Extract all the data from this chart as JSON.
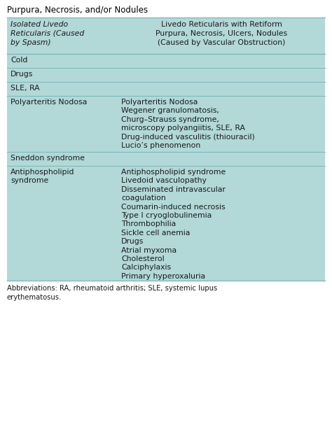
{
  "title_partial": "Purpura, Necrosis, and/or Nodules",
  "header_col1": "Isolated Livedo\nReticularis (Caused\nby Spasm)",
  "header_col2": "Livedo Reticularis with Retiform\nPurpura, Necrosis, Ulcers, Nodules\n(Caused by Vascular Obstruction)",
  "rows": [
    {
      "col1": "Cold",
      "col2": ""
    },
    {
      "col1": "Drugs",
      "col2": ""
    },
    {
      "col1": "SLE, RA",
      "col2": ""
    },
    {
      "col1": "Polyarteritis Nodosa",
      "col2": "Polyarteritis Nodosa\nWegener granulomatosis,\nChurg–Strauss syndrome,\nmicroscopy polyangiitis, SLE, RA\nDrug-induced vasculitis (thiouracil)\nLucio’s phenomenon"
    },
    {
      "col1": "Sneddon syndrome",
      "col2": ""
    },
    {
      "col1": "Antiphospholipid\nsyndrome",
      "col2": "Antiphospholipid syndrome\nLivedoid vasculopathy\nDisseminated intravascular\ncoagulation\nCoumarin-induced necrosis\nType I cryoglobulinemia\nThrombophilia\nSickle cell anemia\nDrugs\nAtrial myxoma\nCholesterol\nCalciphylaxis\nPrimary hyperoxaluria"
    }
  ],
  "footnote": "Abbreviations: RA, rheumatoid arthritis; SLE, systemic lupus\nerythematosus.",
  "bg_color": "#b2d8d8",
  "line_color": "#7ab8b8",
  "text_color": "#1a1a1a",
  "title_color": "#000000",
  "fig_bg": "#ffffff",
  "font_size": 7.8,
  "header_font_size": 7.8,
  "title_font_size": 8.5,
  "footnote_font_size": 7.2
}
